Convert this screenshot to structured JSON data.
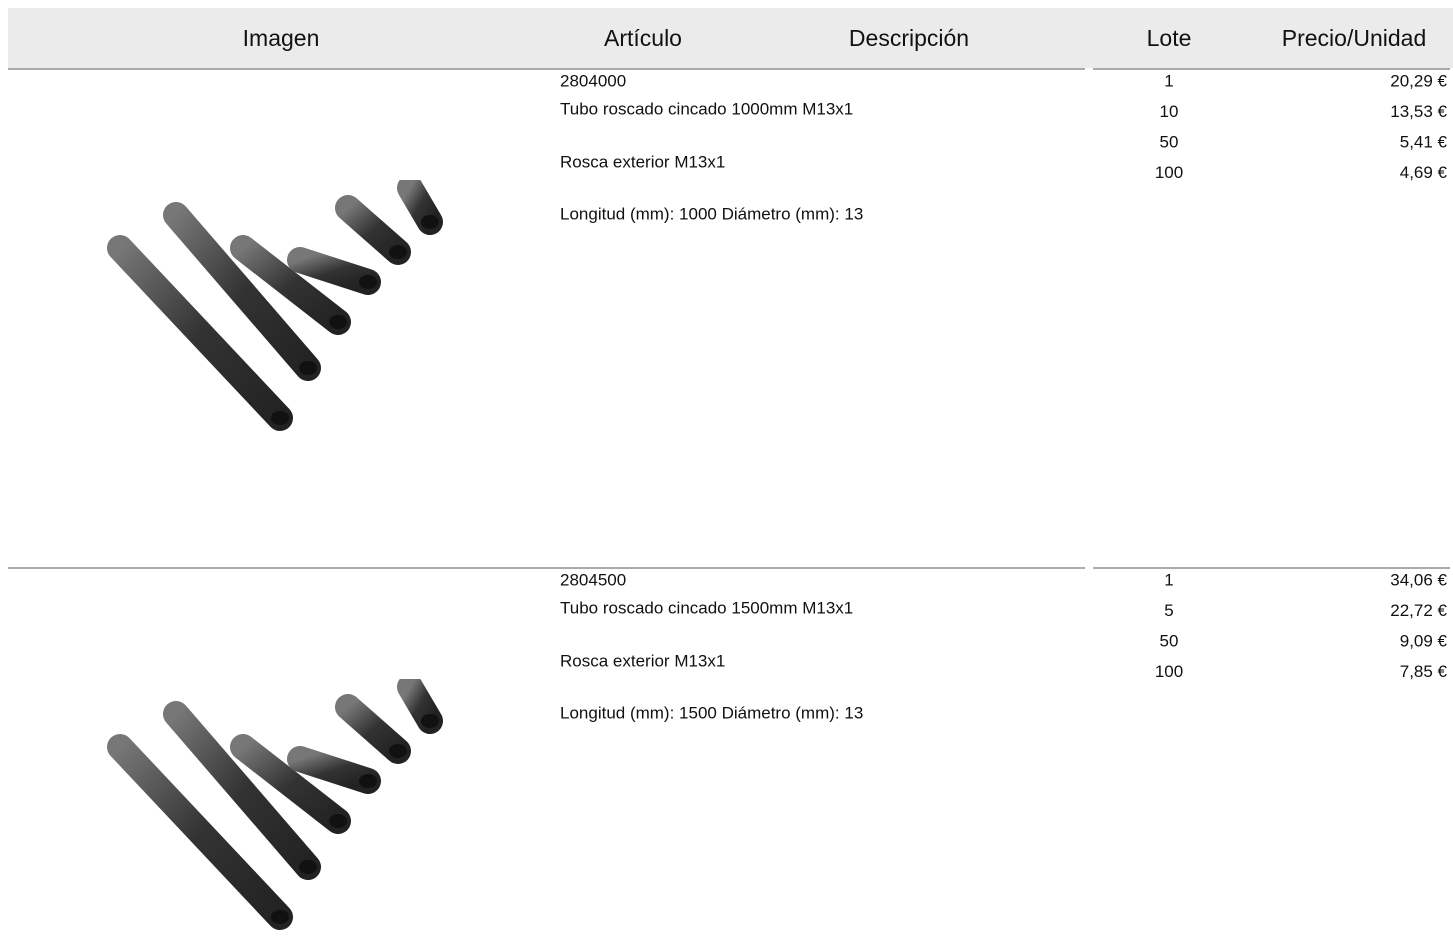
{
  "header": {
    "columns": [
      "Imagen",
      "Artículo",
      "Descripción",
      "Lote",
      "Precio/Unidad"
    ]
  },
  "products": [
    {
      "code": "2804000",
      "name": "Tubo roscado cincado 1000mm M13x1",
      "thread": "Rosca exterior M13x1",
      "specs": "Longitud (mm): 1000 Diámetro (mm): 13",
      "lots": [
        1,
        10,
        50,
        100
      ],
      "prices": [
        "20,29 €",
        "13,53 €",
        "5,41 €",
        "4,69 €"
      ]
    },
    {
      "code": "2804500",
      "name": "Tubo roscado cincado 1500mm M13x1",
      "thread": "Rosca exterior M13x1",
      "specs": "Longitud (mm): 1500 Diámetro (mm): 13",
      "lots": [
        1,
        5,
        50,
        100
      ],
      "prices": [
        "34,06 €",
        "22,72 €",
        "9,09 €",
        "7,85 €"
      ]
    }
  ]
}
